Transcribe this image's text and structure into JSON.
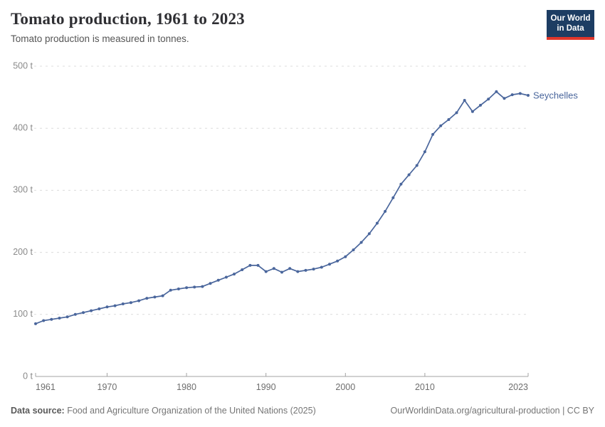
{
  "header": {
    "title": "Tomato production, 1961 to 2023",
    "subtitle": "Tomato production is measured in tonnes.",
    "logo": {
      "line1": "Our World",
      "line2": "in Data"
    }
  },
  "chart_data": {
    "type": "line",
    "title": "Tomato production, 1961 to 2023",
    "unit": "tonnes",
    "xlabel": "",
    "ylabel": "",
    "xlim": [
      1961,
      2023
    ],
    "ylim": [
      0,
      500
    ],
    "x_ticks": [
      1961,
      1970,
      1980,
      1990,
      2000,
      2010,
      2023
    ],
    "y_ticks": [
      0,
      100,
      200,
      300,
      400,
      500
    ],
    "y_tick_format": "{v} t",
    "grid": "horizontal-dashed",
    "legend_position": "end-of-line-label",
    "x": [
      1961,
      1962,
      1963,
      1964,
      1965,
      1966,
      1967,
      1968,
      1969,
      1970,
      1971,
      1972,
      1973,
      1974,
      1975,
      1976,
      1977,
      1978,
      1979,
      1980,
      1981,
      1982,
      1983,
      1984,
      1985,
      1986,
      1987,
      1988,
      1989,
      1990,
      1991,
      1992,
      1993,
      1994,
      1995,
      1996,
      1997,
      1998,
      1999,
      2000,
      2001,
      2002,
      2003,
      2004,
      2005,
      2006,
      2007,
      2008,
      2009,
      2010,
      2011,
      2012,
      2013,
      2014,
      2015,
      2016,
      2017,
      2018,
      2019,
      2020,
      2021,
      2022,
      2023
    ],
    "series": [
      {
        "name": "Seychelles",
        "color": "#4a669c",
        "values": [
          85,
          90,
          92,
          94,
          96,
          100,
          103,
          106,
          109,
          112,
          114,
          117,
          119,
          122,
          126,
          128,
          130,
          139,
          141,
          143,
          144,
          145,
          150,
          155,
          160,
          165,
          172,
          179,
          179,
          169,
          174,
          168,
          174,
          169,
          171,
          173,
          176,
          181,
          186,
          193,
          204,
          216,
          230,
          247,
          266,
          288,
          310,
          325,
          340,
          362,
          390,
          404,
          414,
          425,
          445,
          427,
          437,
          447,
          459,
          448,
          454,
          456,
          453
        ]
      }
    ]
  },
  "colors": {
    "line": "#4a669c",
    "grid": "#dcdcdc",
    "axis": "#a3a3a3",
    "y_tick_text": "#8a8a8a",
    "x_tick_text": "#6e6e6e",
    "logo_bg": "#1d3d63",
    "logo_accent": "#e0362b"
  },
  "footer": {
    "source_label": "Data source:",
    "source_text": "Food and Agriculture Organization of the United Nations (2025)",
    "right_text": "OurWorldinData.org/agricultural-production | CC BY"
  }
}
